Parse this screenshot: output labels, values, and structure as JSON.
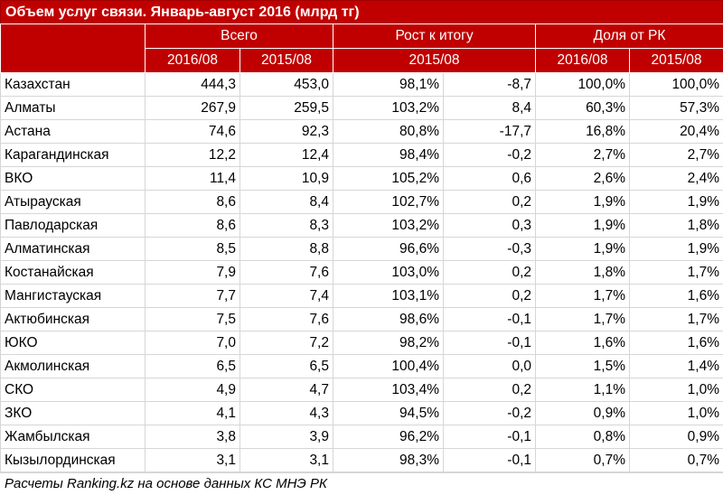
{
  "title": "Объем услуг связи. Январь-август 2016 (млрд тг)",
  "header": {
    "group1": "Всего",
    "group2": "Рост к итогу",
    "group3": "Доля от РК",
    "sub": [
      "2016/08",
      "2015/08",
      "2015/08",
      "2016/08",
      "2015/08"
    ]
  },
  "rows": [
    {
      "region": "Казахстан",
      "v2016": "444,3",
      "v2015": "453,0",
      "growth_pct": "98,1%",
      "growth_abs": "-8,7",
      "share2016": "100,0%",
      "share2015": "100,0%"
    },
    {
      "region": "Алматы",
      "v2016": "267,9",
      "v2015": "259,5",
      "growth_pct": "103,2%",
      "growth_abs": "8,4",
      "share2016": "60,3%",
      "share2015": "57,3%"
    },
    {
      "region": "Астана",
      "v2016": "74,6",
      "v2015": "92,3",
      "growth_pct": "80,8%",
      "growth_abs": "-17,7",
      "share2016": "16,8%",
      "share2015": "20,4%"
    },
    {
      "region": "Карагандинская",
      "v2016": "12,2",
      "v2015": "12,4",
      "growth_pct": "98,4%",
      "growth_abs": "-0,2",
      "share2016": "2,7%",
      "share2015": "2,7%"
    },
    {
      "region": "ВКО",
      "v2016": "11,4",
      "v2015": "10,9",
      "growth_pct": "105,2%",
      "growth_abs": "0,6",
      "share2016": "2,6%",
      "share2015": "2,4%"
    },
    {
      "region": "Атырауская",
      "v2016": "8,6",
      "v2015": "8,4",
      "growth_pct": "102,7%",
      "growth_abs": "0,2",
      "share2016": "1,9%",
      "share2015": "1,9%"
    },
    {
      "region": "Павлодарская",
      "v2016": "8,6",
      "v2015": "8,3",
      "growth_pct": "103,2%",
      "growth_abs": "0,3",
      "share2016": "1,9%",
      "share2015": "1,8%"
    },
    {
      "region": "Алматинская",
      "v2016": "8,5",
      "v2015": "8,8",
      "growth_pct": "96,6%",
      "growth_abs": "-0,3",
      "share2016": "1,9%",
      "share2015": "1,9%"
    },
    {
      "region": "Костанайская",
      "v2016": "7,9",
      "v2015": "7,6",
      "growth_pct": "103,0%",
      "growth_abs": "0,2",
      "share2016": "1,8%",
      "share2015": "1,7%"
    },
    {
      "region": "Мангистауская",
      "v2016": "7,7",
      "v2015": "7,4",
      "growth_pct": "103,1%",
      "growth_abs": "0,2",
      "share2016": "1,7%",
      "share2015": "1,6%"
    },
    {
      "region": "Актюбинская",
      "v2016": "7,5",
      "v2015": "7,6",
      "growth_pct": "98,6%",
      "growth_abs": "-0,1",
      "share2016": "1,7%",
      "share2015": "1,7%"
    },
    {
      "region": "ЮКО",
      "v2016": "7,0",
      "v2015": "7,2",
      "growth_pct": "98,2%",
      "growth_abs": "-0,1",
      "share2016": "1,6%",
      "share2015": "1,6%"
    },
    {
      "region": "Акмолинская",
      "v2016": "6,5",
      "v2015": "6,5",
      "growth_pct": "100,4%",
      "growth_abs": "0,0",
      "share2016": "1,5%",
      "share2015": "1,4%"
    },
    {
      "region": "СКО",
      "v2016": "4,9",
      "v2015": "4,7",
      "growth_pct": "103,4%",
      "growth_abs": "0,2",
      "share2016": "1,1%",
      "share2015": "1,0%"
    },
    {
      "region": "ЗКО",
      "v2016": "4,1",
      "v2015": "4,3",
      "growth_pct": "94,5%",
      "growth_abs": "-0,2",
      "share2016": "0,9%",
      "share2015": "1,0%"
    },
    {
      "region": "Жамбылская",
      "v2016": "3,8",
      "v2015": "3,9",
      "growth_pct": "96,2%",
      "growth_abs": "-0,1",
      "share2016": "0,8%",
      "share2015": "0,9%"
    },
    {
      "region": "Кызылординская",
      "v2016": "3,1",
      "v2015": "3,1",
      "growth_pct": "98,3%",
      "growth_abs": "-0,1",
      "share2016": "0,7%",
      "share2015": "0,7%"
    }
  ],
  "footer": "Расчеты Ranking.kz на основе данных КС МНЭ РК",
  "colors": {
    "header_bg": "#c00000",
    "header_text": "#ffffff"
  }
}
